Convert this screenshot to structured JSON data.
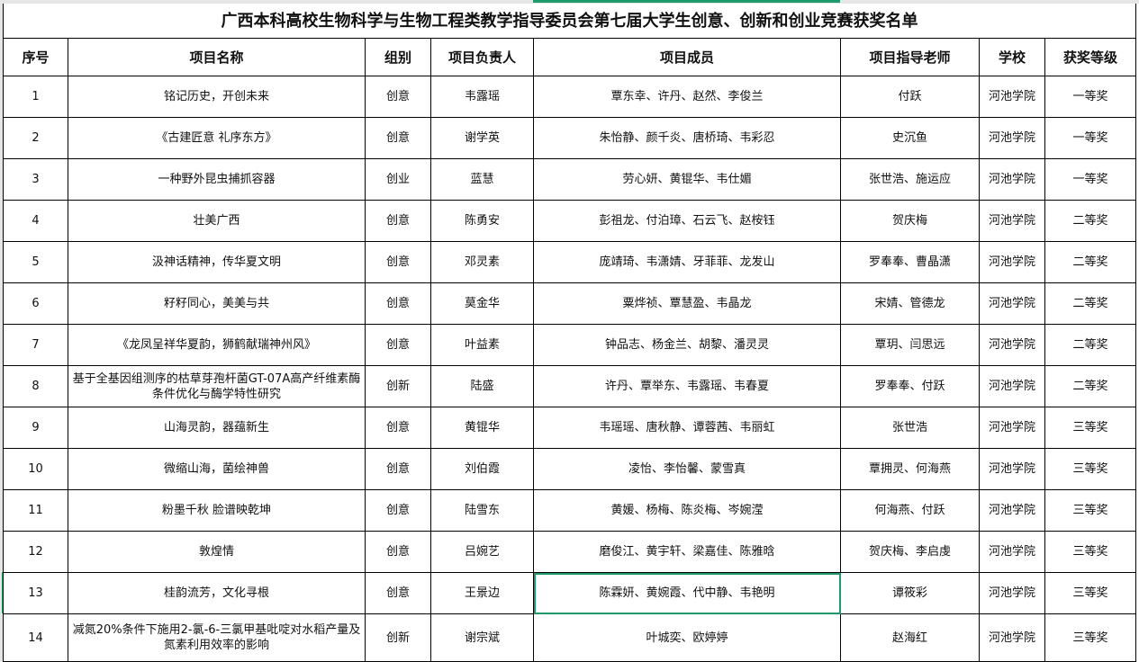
{
  "title": "广西本科高校生物科学与生物工程类教学指导委员会第七届大学生创意、创新和创业竞赛获奖名单",
  "columns": [
    "序号",
    "项目名称",
    "组别",
    "项目负责人",
    "项目成员",
    "项目指导老师",
    "学校",
    "获奖等级"
  ],
  "rows": [
    [
      "1",
      "铭记历史，开创未来",
      "创意",
      "韦露瑶",
      "覃东幸、许丹、赵然、李俊兰",
      "付跃",
      "河池学院",
      "一等奖"
    ],
    [
      "2",
      "《古建匠意 礼序东方》",
      "创意",
      "谢学英",
      "朱怡静、颜千炎、唐桥琦、韦彩忍",
      "史沉鱼",
      "河池学院",
      "一等奖"
    ],
    [
      "3",
      "一种野外昆虫捕抓容器",
      "创业",
      "蓝慧",
      "劳心妍、黄锟华、韦仕媚",
      "张世浩、施运应",
      "河池学院",
      "一等奖"
    ],
    [
      "4",
      "壮美广西",
      "创意",
      "陈勇安",
      "彭祖龙、付泊璋、石云飞、赵桉钰",
      "贺庆梅",
      "河池学院",
      "二等奖"
    ],
    [
      "5",
      "汲神话精神，传华夏文明",
      "创意",
      "邓灵素",
      "庞靖琦、韦潇婧、牙菲菲、龙发山",
      "罗奉奉、曹晶潇",
      "河池学院",
      "二等奖"
    ],
    [
      "6",
      "籽籽同心，美美与共",
      "创意",
      "莫金华",
      "粟烨祯、覃慧盈、韦晶龙",
      "宋婧、管德龙",
      "河池学院",
      "二等奖"
    ],
    [
      "7",
      "《龙凤呈祥华夏韵，狮鹤献瑞神州风》",
      "创意",
      "叶益素",
      "钟品志、杨金兰、胡黎、潘灵灵",
      "覃玥、闫思远",
      "河池学院",
      "二等奖"
    ],
    [
      "8",
      "基于全基因组测序的枯草芽孢杆菌GT-07A高产纤维素酶条件优化与酶学特性研究",
      "创新",
      "陆盛",
      "许丹、覃举东、韦露瑶、韦春夏",
      "罗奉奉、付跃",
      "河池学院",
      "二等奖"
    ],
    [
      "9",
      "山海灵韵，器蕴新生",
      "创意",
      "黄锟华",
      "韦瑶瑶、唐秋静、谭蓉茜、韦丽虹",
      "张世浩",
      "河池学院",
      "三等奖"
    ],
    [
      "10",
      "微缩山海，菌绘神兽",
      "创意",
      "刘伯霞",
      "凌怡、李怡馨、蒙雪真",
      "覃拥灵、何海燕",
      "河池学院",
      "三等奖"
    ],
    [
      "11",
      "粉墨千秋 脸谱映乾坤",
      "创意",
      "陆雪东",
      "黄媛、杨梅、陈炎梅、岑婉滢",
      "何海燕、付跃",
      "河池学院",
      "三等奖"
    ],
    [
      "12",
      "敦煌情",
      "创意",
      "吕婉艺",
      "磨俊江、黄宇轩、梁嘉佳、陈雅晗",
      "贺庆梅、李启虔",
      "河池学院",
      "三等奖"
    ],
    [
      "13",
      "桂韵流芳，文化寻根",
      "创意",
      "王景边",
      "陈霖妍、黄婉霞、代中静、韦艳明",
      "谭筱彩",
      "河池学院",
      "三等奖"
    ],
    [
      "14",
      "减氮20%条件下施用2-氯-6-三氯甲基吡啶对水稻产量及氮素利用效率的影响",
      "创新",
      "谢宗斌",
      "叶城奕、欧婷婷",
      "赵海红",
      "河池学院",
      "三等奖"
    ]
  ],
  "selected_cell": {
    "row": "13",
    "column": "项目成员"
  },
  "colors": {
    "selection": "#1e9b6b",
    "grid": "#000000"
  }
}
